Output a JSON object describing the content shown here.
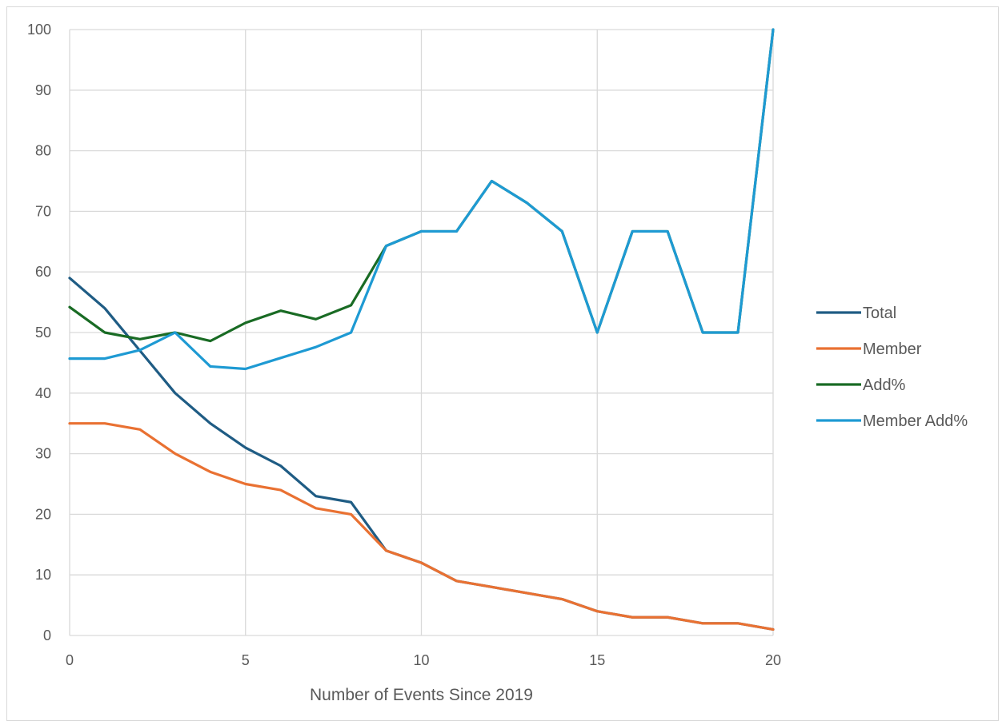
{
  "chart_data": {
    "type": "line",
    "title": "",
    "xlabel": "Number of Events Since 2019",
    "ylabel": "",
    "xlim": [
      0,
      20
    ],
    "ylim": [
      0,
      100
    ],
    "x_ticks": [
      "0",
      "5",
      "10",
      "15",
      "20"
    ],
    "y_ticks": [
      "0",
      "10",
      "20",
      "30",
      "40",
      "50",
      "60",
      "70",
      "80",
      "90",
      "100"
    ],
    "grid": true,
    "legend_position": "right",
    "x": [
      0,
      1,
      2,
      3,
      4,
      5,
      6,
      7,
      8,
      9,
      10,
      11,
      12,
      13,
      14,
      15,
      16,
      17,
      18,
      19,
      20
    ],
    "series": [
      {
        "name": "Total",
        "color": "#1f5c84",
        "values": [
          59,
          54,
          47,
          40,
          35,
          31,
          28,
          23,
          22,
          14,
          12,
          9,
          8,
          7,
          6,
          4,
          3,
          3,
          2,
          2,
          1
        ]
      },
      {
        "name": "Member",
        "color": "#e97132",
        "values": [
          35,
          35,
          34,
          30,
          27,
          25,
          24,
          21,
          20,
          14,
          12,
          9,
          8,
          7,
          6,
          4,
          3,
          3,
          2,
          2,
          1
        ]
      },
      {
        "name": "Add%",
        "color": "#196b24",
        "values": [
          54.2,
          50,
          48.9,
          50,
          48.6,
          51.6,
          53.6,
          52.2,
          54.5,
          64.3,
          66.7,
          66.7,
          75,
          71.4,
          66.7,
          50,
          66.7,
          66.7,
          50,
          50,
          100
        ]
      },
      {
        "name": "Member Add%",
        "color": "#1e9ad3",
        "values": [
          45.7,
          45.7,
          47.1,
          50,
          44.4,
          44,
          45.8,
          47.6,
          50,
          64.3,
          66.7,
          66.7,
          75,
          71.4,
          66.7,
          50,
          66.7,
          66.7,
          50,
          50,
          100
        ]
      }
    ]
  }
}
